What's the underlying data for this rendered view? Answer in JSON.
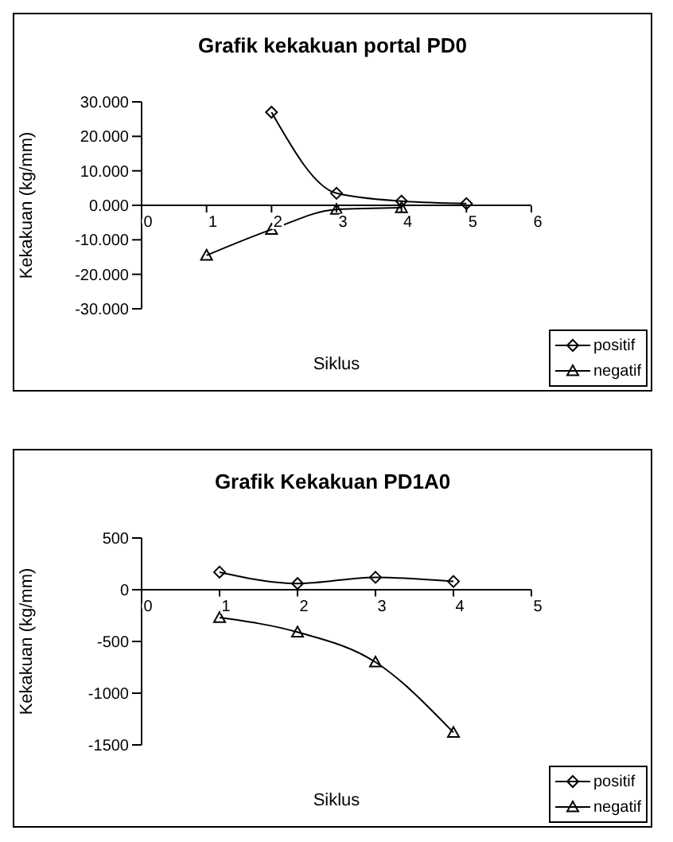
{
  "chart_data": [
    {
      "type": "line",
      "title": "Grafik kekakuan portal PD0",
      "xlabel": "Siklus",
      "ylabel": "Kekakuan (kg/mm)",
      "x": [
        1,
        2,
        3,
        4,
        5
      ],
      "series": [
        {
          "name": "positif",
          "color": "#000000",
          "marker": "diamond",
          "values": [
            null,
            27,
            3.5,
            1.2,
            0.5
          ]
        },
        {
          "name": "negatif",
          "color": "#000000",
          "marker": "triangle",
          "values": [
            -14.5,
            -7,
            -1.2,
            -0.7,
            null
          ]
        }
      ],
      "xlim": [
        0,
        6
      ],
      "xticks": [
        0,
        1,
        2,
        3,
        4,
        5,
        6
      ],
      "ylim": [
        -30,
        30
      ],
      "yticks": [
        {
          "value": -30,
          "label": "-30.000"
        },
        {
          "value": -20,
          "label": "-20.000"
        },
        {
          "value": -10,
          "label": "-10.000"
        },
        {
          "value": 0,
          "label": "0.000"
        },
        {
          "value": 10,
          "label": "10.000"
        },
        {
          "value": 20,
          "label": "20.000"
        },
        {
          "value": 30,
          "label": "30.000"
        }
      ],
      "legend": "bottom right",
      "grid": false,
      "line_style": "solid"
    },
    {
      "type": "line",
      "title": "Grafik Kekakuan PD1A0",
      "xlabel": "Siklus",
      "ylabel": "Kekakuan (kg/mm)",
      "x": [
        1,
        2,
        3,
        4
      ],
      "series": [
        {
          "name": "positif",
          "color": "#000000",
          "marker": "diamond",
          "values": [
            170,
            60,
            120,
            80
          ]
        },
        {
          "name": "negatif",
          "color": "#000000",
          "marker": "triangle",
          "values": [
            -270,
            -410,
            -700,
            -1380
          ]
        }
      ],
      "xlim": [
        0,
        5
      ],
      "xticks": [
        0,
        1,
        2,
        3,
        4,
        5
      ],
      "ylim": [
        -1500,
        500
      ],
      "yticks": [
        -1500,
        -1000,
        -500,
        0,
        500
      ],
      "legend": "bottom right",
      "grid": false,
      "line_style": "solid"
    }
  ]
}
